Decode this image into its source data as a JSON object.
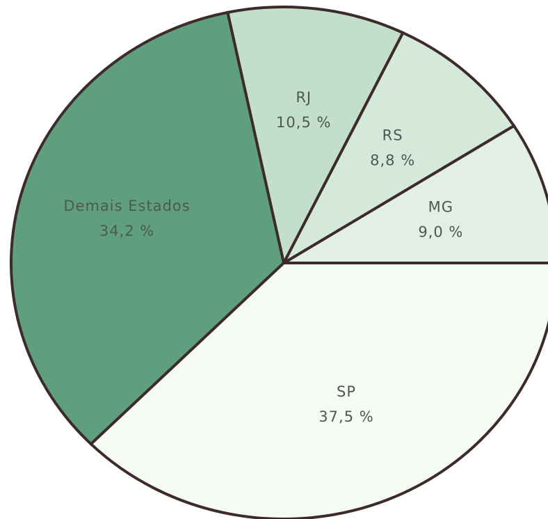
{
  "chart_data": {
    "type": "pie",
    "categories": [
      "MG",
      "RS",
      "RJ",
      "Demais Estados",
      "SP"
    ],
    "values": [
      9.0,
      8.8,
      10.5,
      34.2,
      37.5
    ],
    "value_labels": [
      "9,0 %",
      "8,8 %",
      "10,5 %",
      "34,2 %",
      "37,5 %"
    ],
    "colors": [
      "#e2efe4",
      "#d4e9d9",
      "#c3dfc9",
      "#5f9f7d",
      "#f5faf5"
    ]
  }
}
